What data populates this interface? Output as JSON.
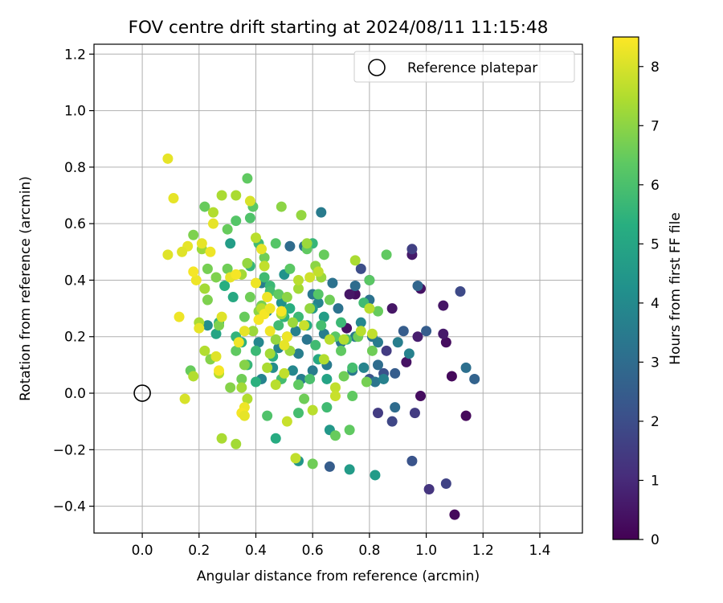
{
  "chart_data": {
    "type": "scatter",
    "title": "FOV centre drift starting at 2024/08/11 11:15:48",
    "xlabel": "Angular distance from reference (arcmin)",
    "ylabel": "Rotation from reference (arcmin)",
    "xlim": [
      -0.17,
      1.55
    ],
    "ylim": [
      -0.495,
      1.235
    ],
    "xticks": [
      "0.0",
      "0.2",
      "0.4",
      "0.6",
      "0.8",
      "1.0",
      "1.2",
      "1.4"
    ],
    "yticks": [
      "−0.4",
      "−0.2",
      "0.0",
      "0.2",
      "0.4",
      "0.6",
      "0.8",
      "1.0",
      "1.2"
    ],
    "grid": true,
    "legend": {
      "position": "top-right",
      "entries": [
        "Reference platepar"
      ]
    },
    "reference_point": {
      "x": 0.0,
      "y": 0.0
    },
    "colorbar": {
      "label": "Hours from first FF file",
      "range": [
        0,
        8.5
      ],
      "ticks": [
        "0",
        "1",
        "2",
        "3",
        "4",
        "5",
        "6",
        "7",
        "8"
      ],
      "colormap": "viridis"
    },
    "points": [
      [
        1.1,
        -0.43,
        0.2
      ],
      [
        1.14,
        -0.08,
        0.2
      ],
      [
        1.09,
        0.06,
        0.2
      ],
      [
        1.07,
        0.18,
        0.3
      ],
      [
        1.06,
        0.31,
        0.5
      ],
      [
        1.06,
        0.21,
        0.6
      ],
      [
        0.98,
        0.37,
        0.4
      ],
      [
        0.98,
        -0.01,
        0.3
      ],
      [
        0.93,
        0.11,
        0.4
      ],
      [
        0.88,
        0.3,
        0.5
      ],
      [
        0.95,
        0.49,
        0.6
      ],
      [
        0.97,
        0.2,
        0.7
      ],
      [
        0.75,
        0.35,
        0.3
      ],
      [
        0.72,
        0.23,
        0.4
      ],
      [
        0.73,
        0.35,
        0.5
      ],
      [
        1.01,
        -0.34,
        1.3
      ],
      [
        1.07,
        -0.32,
        1.7
      ],
      [
        0.95,
        0.51,
        1.6
      ],
      [
        0.96,
        -0.07,
        1.5
      ],
      [
        0.83,
        -0.07,
        1.5
      ],
      [
        0.88,
        -0.1,
        1.8
      ],
      [
        0.95,
        -0.24,
        2.2
      ],
      [
        1.12,
        0.36,
        1.9
      ],
      [
        1.0,
        0.22,
        2.5
      ],
      [
        0.86,
        0.15,
        1.5
      ],
      [
        0.77,
        0.44,
        2.0
      ],
      [
        0.8,
        0.4,
        2.0
      ],
      [
        0.8,
        0.05,
        2.2
      ],
      [
        0.66,
        -0.26,
        2.5
      ],
      [
        0.92,
        0.22,
        2.5
      ],
      [
        0.85,
        0.07,
        2.1
      ],
      [
        0.89,
        0.07,
        2.5
      ],
      [
        1.14,
        0.09,
        3.1
      ],
      [
        1.17,
        0.05,
        2.7
      ],
      [
        0.97,
        0.38,
        2.8
      ],
      [
        0.89,
        -0.05,
        3.0
      ],
      [
        0.83,
        0.1,
        3.0
      ],
      [
        0.82,
        0.04,
        3.3
      ],
      [
        0.8,
        0.33,
        3.2
      ],
      [
        0.75,
        0.38,
        3.0
      ],
      [
        0.69,
        0.3,
        3.2
      ],
      [
        0.63,
        0.64,
        3.5
      ],
      [
        0.62,
        0.32,
        3.8
      ],
      [
        0.64,
        0.21,
        3.6
      ],
      [
        0.65,
        0.1,
        3.5
      ],
      [
        0.67,
        0.39,
        3.2
      ],
      [
        0.7,
        0.18,
        3.4
      ],
      [
        0.74,
        0.08,
        3.4
      ],
      [
        0.75,
        0.2,
        3.5
      ],
      [
        0.78,
        0.09,
        3.8
      ],
      [
        0.81,
        0.2,
        3.3
      ],
      [
        0.83,
        0.18,
        3.5
      ],
      [
        0.85,
        0.05,
        3.7
      ],
      [
        0.9,
        0.18,
        3.6
      ],
      [
        0.94,
        0.14,
        3.7
      ],
      [
        0.77,
        0.25,
        3.9
      ],
      [
        0.52,
        0.52,
        3.0
      ],
      [
        0.57,
        0.52,
        3.2
      ],
      [
        0.6,
        0.35,
        3.4
      ],
      [
        0.58,
        0.19,
        3.3
      ],
      [
        0.54,
        0.22,
        3.7
      ],
      [
        0.55,
        0.14,
        3.6
      ],
      [
        0.6,
        0.08,
        3.5
      ],
      [
        0.56,
        0.05,
        3.6
      ],
      [
        0.53,
        0.08,
        3.9
      ],
      [
        0.48,
        0.16,
        3.8
      ],
      [
        0.44,
        0.29,
        3.9
      ],
      [
        0.42,
        0.39,
        3.6
      ],
      [
        0.41,
        0.18,
        3.9
      ],
      [
        0.42,
        0.05,
        3.8
      ],
      [
        0.46,
        0.09,
        4.1
      ],
      [
        0.49,
        0.32,
        4.3
      ],
      [
        0.5,
        0.42,
        4.3
      ],
      [
        0.6,
        0.3,
        4.5
      ],
      [
        0.64,
        0.27,
        4.7
      ],
      [
        0.66,
        -0.13,
        4.5
      ],
      [
        0.55,
        -0.24,
        4.4
      ],
      [
        0.73,
        -0.27,
        4.6
      ],
      [
        0.82,
        -0.29,
        4.6
      ],
      [
        0.23,
        0.24,
        4.1
      ],
      [
        0.31,
        0.53,
        4.7
      ],
      [
        0.65,
        0.05,
        4.9
      ],
      [
        0.62,
        0.12,
        5.1
      ],
      [
        0.58,
        0.24,
        5.2
      ],
      [
        0.52,
        0.3,
        5.3
      ],
      [
        0.5,
        0.27,
        5.5
      ],
      [
        0.46,
        0.13,
        5.3
      ],
      [
        0.47,
        -0.16,
        5.2
      ],
      [
        0.4,
        0.04,
        5.4
      ],
      [
        0.37,
        0.1,
        5.6
      ],
      [
        0.35,
        0.18,
        5.4
      ],
      [
        0.33,
        0.2,
        5.5
      ],
      [
        0.32,
        0.34,
        5.1
      ],
      [
        0.29,
        0.38,
        5.3
      ],
      [
        0.27,
        0.25,
        5.6
      ],
      [
        0.26,
        0.21,
        5.0
      ],
      [
        0.38,
        0.45,
        5.6
      ],
      [
        0.45,
        0.38,
        5.7
      ],
      [
        0.4,
        0.15,
        5.7
      ],
      [
        0.45,
        0.36,
        5.9
      ],
      [
        0.43,
        0.41,
        5.8
      ],
      [
        0.48,
        0.24,
        5.8
      ],
      [
        0.51,
        0.2,
        5.9
      ],
      [
        0.55,
        0.27,
        5.7
      ],
      [
        0.61,
        0.17,
        5.8
      ],
      [
        0.63,
        0.24,
        5.9
      ],
      [
        0.7,
        0.25,
        5.7
      ],
      [
        0.72,
        0.19,
        5.9
      ],
      [
        0.78,
        0.32,
        5.8
      ],
      [
        0.74,
        0.09,
        5.9
      ],
      [
        0.65,
        -0.05,
        5.8
      ],
      [
        0.6,
        0.53,
        5.6
      ],
      [
        0.41,
        0.53,
        5.8
      ],
      [
        0.49,
        0.05,
        5.9
      ],
      [
        0.55,
        -0.07,
        5.9
      ],
      [
        0.44,
        -0.08,
        6.1
      ],
      [
        0.59,
        0.05,
        6.0
      ],
      [
        0.38,
        0.62,
        6.1
      ],
      [
        0.39,
        0.66,
        6.3
      ],
      [
        0.37,
        0.76,
        6.4
      ],
      [
        0.33,
        0.61,
        6.2
      ],
      [
        0.3,
        0.58,
        6.5
      ],
      [
        0.22,
        0.66,
        6.5
      ],
      [
        0.47,
        0.53,
        6.2
      ],
      [
        0.58,
        0.51,
        6.4
      ],
      [
        0.64,
        0.49,
        6.5
      ],
      [
        0.62,
        0.35,
        6.2
      ],
      [
        0.66,
        0.33,
        6.6
      ],
      [
        0.68,
        0.2,
        6.3
      ],
      [
        0.7,
        0.15,
        6.4
      ],
      [
        0.71,
        0.06,
        6.6
      ],
      [
        0.74,
        -0.01,
        6.4
      ],
      [
        0.76,
        0.2,
        6.6
      ],
      [
        0.8,
        0.4,
        6.3
      ],
      [
        0.83,
        0.29,
        6.5
      ],
      [
        0.86,
        0.49,
        6.4
      ],
      [
        0.81,
        0.15,
        6.6
      ],
      [
        0.79,
        0.04,
        6.7
      ],
      [
        0.73,
        -0.13,
        6.4
      ],
      [
        0.68,
        -0.15,
        6.5
      ],
      [
        0.6,
        -0.25,
        6.6
      ],
      [
        0.55,
        0.03,
        6.4
      ],
      [
        0.57,
        -0.02,
        6.6
      ],
      [
        0.52,
        0.44,
        6.3
      ],
      [
        0.48,
        0.35,
        6.4
      ],
      [
        0.43,
        0.48,
        6.6
      ],
      [
        0.42,
        0.31,
        6.7
      ],
      [
        0.38,
        0.34,
        6.6
      ],
      [
        0.36,
        0.27,
        6.5
      ],
      [
        0.33,
        0.15,
        6.4
      ],
      [
        0.3,
        0.44,
        6.6
      ],
      [
        0.26,
        0.41,
        6.8
      ],
      [
        0.23,
        0.33,
        6.8
      ],
      [
        0.23,
        0.44,
        6.7
      ],
      [
        0.17,
        0.08,
        6.5
      ],
      [
        0.18,
        0.56,
        6.8
      ],
      [
        0.24,
        0.12,
        6.9
      ],
      [
        0.27,
        0.24,
        6.8
      ],
      [
        0.31,
        0.02,
        6.9
      ],
      [
        0.35,
        0.05,
        6.6
      ],
      [
        0.36,
        0.1,
        6.9
      ],
      [
        0.49,
        0.66,
        7.0
      ],
      [
        0.56,
        0.63,
        7.1
      ],
      [
        0.58,
        0.53,
        7.2
      ],
      [
        0.61,
        0.45,
        7.0
      ],
      [
        0.63,
        0.41,
        7.2
      ],
      [
        0.59,
        0.3,
        7.1
      ],
      [
        0.55,
        0.37,
        7.3
      ],
      [
        0.53,
        0.25,
        7.2
      ],
      [
        0.51,
        0.34,
        7.0
      ],
      [
        0.52,
        0.15,
        7.2
      ],
      [
        0.49,
        0.28,
        7.4
      ],
      [
        0.47,
        0.19,
        7.1
      ],
      [
        0.45,
        0.14,
        7.3
      ],
      [
        0.41,
        0.29,
        7.0
      ],
      [
        0.39,
        0.22,
        7.2
      ],
      [
        0.37,
        0.46,
        7.1
      ],
      [
        0.35,
        0.42,
        7.3
      ],
      [
        0.33,
        0.7,
        7.4
      ],
      [
        0.28,
        0.7,
        7.4
      ],
      [
        0.25,
        0.64,
        7.5
      ],
      [
        0.21,
        0.51,
        7.2
      ],
      [
        0.2,
        0.25,
        7.4
      ],
      [
        0.22,
        0.37,
        7.3
      ],
      [
        0.18,
        0.06,
        7.5
      ],
      [
        0.22,
        0.15,
        7.5
      ],
      [
        0.27,
        0.07,
        7.5
      ],
      [
        0.28,
        -0.16,
        7.4
      ],
      [
        0.33,
        -0.18,
        7.3
      ],
      [
        0.35,
        0.02,
        7.3
      ],
      [
        0.37,
        -0.02,
        7.5
      ],
      [
        0.42,
        0.3,
        7.6
      ],
      [
        0.44,
        0.09,
        7.4
      ],
      [
        0.47,
        0.03,
        7.6
      ],
      [
        0.5,
        0.07,
        7.7
      ],
      [
        0.51,
        -0.1,
        7.8
      ],
      [
        0.54,
        -0.23,
        7.7
      ],
      [
        0.6,
        -0.06,
        7.6
      ],
      [
        0.64,
        0.12,
        7.5
      ],
      [
        0.66,
        0.19,
        7.6
      ],
      [
        0.68,
        0.02,
        7.7
      ],
      [
        0.68,
        -0.01,
        7.8
      ],
      [
        0.71,
        0.19,
        7.5
      ],
      [
        0.75,
        0.47,
        7.4
      ],
      [
        0.77,
        0.22,
        7.6
      ],
      [
        0.8,
        0.3,
        7.6
      ],
      [
        0.81,
        0.21,
        7.7
      ],
      [
        0.62,
        0.43,
        7.7
      ],
      [
        0.59,
        0.41,
        7.9
      ],
      [
        0.57,
        0.24,
        7.8
      ],
      [
        0.55,
        0.4,
        7.6
      ],
      [
        0.43,
        0.45,
        7.7
      ],
      [
        0.4,
        0.55,
        7.6
      ],
      [
        0.38,
        0.68,
        8.0
      ],
      [
        0.42,
        0.51,
        8.2
      ],
      [
        0.4,
        0.39,
        8.3
      ],
      [
        0.43,
        0.28,
        8.4
      ],
      [
        0.44,
        0.34,
        8.3
      ],
      [
        0.41,
        0.26,
        8.4
      ],
      [
        0.45,
        0.22,
        8.3
      ],
      [
        0.49,
        0.29,
        8.4
      ],
      [
        0.51,
        0.2,
        8.3
      ],
      [
        0.5,
        0.17,
        8.2
      ],
      [
        0.36,
        0.22,
        8.2
      ],
      [
        0.34,
        0.18,
        8.3
      ],
      [
        0.31,
        0.41,
        8.2
      ],
      [
        0.28,
        0.27,
        8.1
      ],
      [
        0.25,
        0.6,
        8.2
      ],
      [
        0.24,
        0.5,
        8.3
      ],
      [
        0.21,
        0.53,
        8.2
      ],
      [
        0.19,
        0.4,
        8.3
      ],
      [
        0.18,
        0.43,
        8.4
      ],
      [
        0.16,
        0.52,
        8.2
      ],
      [
        0.14,
        0.5,
        8.1
      ],
      [
        0.13,
        0.27,
        8.3
      ],
      [
        0.11,
        0.69,
        8.2
      ],
      [
        0.09,
        0.83,
        8.2
      ],
      [
        0.09,
        0.49,
        8.1
      ],
      [
        0.15,
        -0.02,
        8.0
      ],
      [
        0.2,
        0.23,
        8.2
      ],
      [
        0.26,
        0.13,
        8.1
      ],
      [
        0.27,
        0.08,
        8.4
      ],
      [
        0.36,
        -0.05,
        8.3
      ],
      [
        0.35,
        -0.07,
        8.4
      ],
      [
        0.36,
        -0.08,
        8.2
      ],
      [
        0.33,
        0.42,
        8.4
      ],
      [
        0.45,
        0.3,
        8.3
      ]
    ]
  }
}
